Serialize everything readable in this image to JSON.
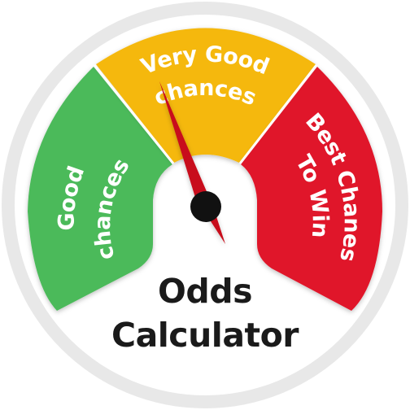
{
  "gauge": {
    "title_line1": "Odds",
    "title_line2": "Calculator",
    "needle_segment": "Very Good chances",
    "segments": [
      {
        "line1": "Good",
        "line2": "chances",
        "color": "#4bba5a"
      },
      {
        "line1": "Very Good",
        "line2": "chances",
        "color": "#f5b80d"
      },
      {
        "line1": "Best Chanes",
        "line2": "To Win",
        "color": "#e0182a"
      }
    ],
    "colors": {
      "outer_ring": "#e8e8e8",
      "face": "#ffffff",
      "needle": "#c8101c",
      "hub": "#111111",
      "text": "#1a1a1a"
    }
  }
}
